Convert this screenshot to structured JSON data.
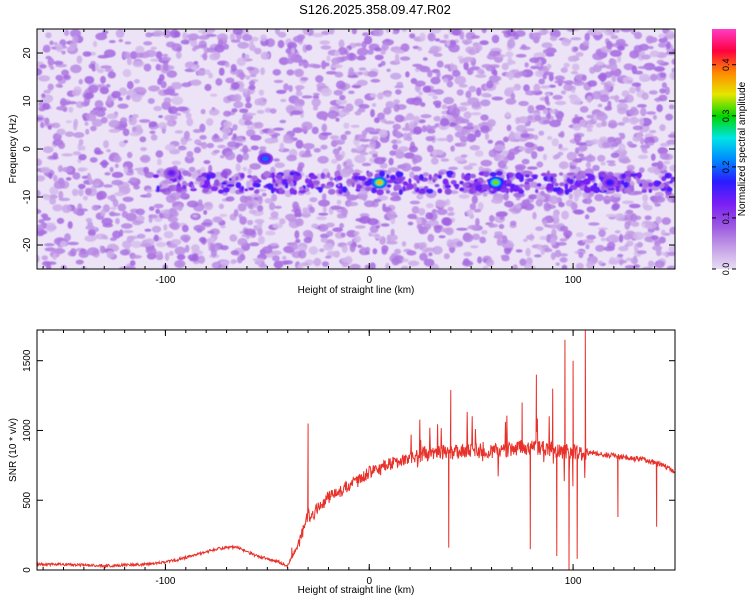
{
  "title": "S126.2025.358.09.47.R02",
  "colors": {
    "snr_line": "#e8312a",
    "colormap": [
      "#e8ddf4",
      "#c39ce6",
      "#9a56e0",
      "#7a1ff5",
      "#2a1cff",
      "#0088ff",
      "#00e5e5",
      "#00d600",
      "#e6e600",
      "#ff8800",
      "#ff0040",
      "#ff3cc8"
    ]
  },
  "chart_data": [
    {
      "type": "heatmap",
      "xlabel": "Height of straight line (km)",
      "ylabel": "Frequency (Hz)",
      "xlim": [
        -163,
        150
      ],
      "ylim": [
        -25,
        25
      ],
      "xticks": [
        -100,
        0,
        100
      ],
      "yticks": [
        -20,
        -10,
        0,
        10,
        20
      ],
      "colorbar": {
        "label": "Normalized spectral amplitude",
        "range": [
          0,
          0.47
        ],
        "ticks": [
          "0.0",
          "0.1",
          "0.2",
          "0.3",
          "0.4"
        ]
      },
      "features": {
        "background_level_range": [
          0.02,
          0.08
        ],
        "ridge_frequency_hz": -7,
        "ridge_x_extent": [
          -105,
          150
        ],
        "peaks": [
          {
            "x": -51,
            "y": -2,
            "value": 0.2
          },
          {
            "x": 5,
            "y": -7,
            "value": 0.36
          },
          {
            "x": 62,
            "y": -7,
            "value": 0.32
          },
          {
            "x": 118,
            "y": -7,
            "value": 0.17
          },
          {
            "x": -97,
            "y": -5,
            "value": 0.14
          }
        ]
      }
    },
    {
      "type": "line",
      "xlabel": "Height of straight line (km)",
      "ylabel": "SNR (10 * v/v)",
      "xlim": [
        -163,
        150
      ],
      "ylim": [
        0,
        1720
      ],
      "xticks": [
        -100,
        0,
        100
      ],
      "yticks": [
        0,
        500,
        1000,
        1500
      ],
      "series": [
        {
          "x": [
            -163,
            -150,
            -140,
            -130,
            -120,
            -110,
            -100,
            -95,
            -90,
            -85,
            -80,
            -75,
            -70,
            -65,
            -60,
            -55,
            -50,
            -45,
            -40,
            -36,
            -34,
            -32,
            -30,
            -28,
            -25,
            -20,
            -15,
            -10,
            -5,
            0,
            5,
            10,
            15,
            20,
            25,
            30,
            35,
            40,
            45,
            50,
            55,
            60,
            65,
            70,
            75,
            80,
            85,
            90,
            95,
            100,
            103,
            106,
            110,
            115,
            120,
            125,
            130,
            135,
            140,
            145,
            150
          ],
          "y": [
            40,
            40,
            35,
            30,
            35,
            40,
            60,
            70,
            90,
            110,
            130,
            150,
            160,
            165,
            130,
            100,
            80,
            60,
            30,
            150,
            220,
            300,
            400,
            380,
            450,
            520,
            560,
            600,
            640,
            700,
            720,
            760,
            780,
            800,
            820,
            840,
            850,
            840,
            850,
            860,
            870,
            850,
            860,
            860,
            880,
            880,
            880,
            860,
            850,
            850,
            840,
            830,
            840,
            830,
            820,
            810,
            800,
            790,
            770,
            740,
            700
          ]
        }
      ],
      "spikes": [
        {
          "x": -38,
          "y": 160
        },
        {
          "x": -30,
          "y": 1050
        },
        {
          "x": 40,
          "y": 1290
        },
        {
          "x": 39,
          "y": 160
        },
        {
          "x": 75,
          "y": 1200
        },
        {
          "x": 79,
          "y": 150
        },
        {
          "x": 82,
          "y": 1400
        },
        {
          "x": 90,
          "y": 1300
        },
        {
          "x": 92,
          "y": 100
        },
        {
          "x": 96,
          "y": 1650
        },
        {
          "x": 98,
          "y": 0
        },
        {
          "x": 100,
          "y": 1500
        },
        {
          "x": 102,
          "y": 80
        },
        {
          "x": 106,
          "y": 1720
        },
        {
          "x": 122,
          "y": 380
        },
        {
          "x": 141,
          "y": 310
        }
      ]
    }
  ]
}
